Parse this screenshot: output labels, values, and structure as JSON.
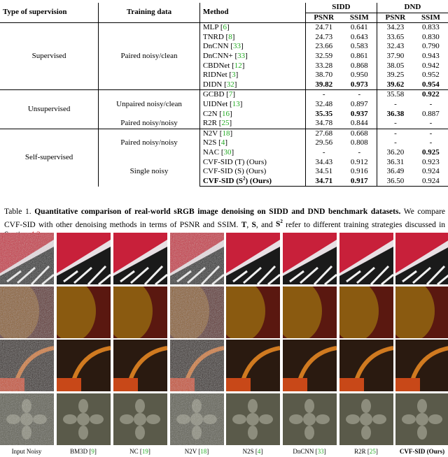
{
  "table": {
    "headers": {
      "type_of_supervision": "Type of supervision",
      "training_data": "Training data",
      "method": "Method",
      "sidd": "SIDD",
      "dnd": "DND",
      "psnr": "PSNR",
      "ssim": "SSIM"
    },
    "groups": {
      "supervised": "Supervised",
      "unsupervised": "Unsupervised",
      "self_supervised": "Self-supervised"
    },
    "training": {
      "paired_noisy_clean": "Paired noisy/clean",
      "unpaired_noisy_clean": "Unpaired noisy/clean",
      "paired_noisy_noisy_1": "Paired noisy/noisy",
      "paired_noisy_noisy_2": "Paired noisy/noisy",
      "single_noisy": "Single noisy"
    },
    "rows": [
      {
        "method": "MLP",
        "ref": "6",
        "sp": "24.71",
        "ss": "0.641",
        "dp": "34.23",
        "ds": "0.833"
      },
      {
        "method": "TNRD",
        "ref": "8",
        "sp": "24.73",
        "ss": "0.643",
        "dp": "33.65",
        "ds": "0.830"
      },
      {
        "method": "DnCNN",
        "ref": "33",
        "sp": "23.66",
        "ss": "0.583",
        "dp": "32.43",
        "ds": "0.790"
      },
      {
        "method": "DnCNN+",
        "ref": "33",
        "sp": "32.59",
        "ss": "0.861",
        "dp": "37.90",
        "ds": "0.943"
      },
      {
        "method": "CBDNet",
        "ref": "12",
        "sp": "33.28",
        "ss": "0.868",
        "dp": "38.05",
        "ds": "0.942"
      },
      {
        "method": "RIDNet",
        "ref": "3",
        "sp": "38.70",
        "ss": "0.950",
        "dp": "39.25",
        "ds": "0.952"
      },
      {
        "method": "DIDN",
        "ref": "32",
        "sp": "39.82",
        "ss": "0.973",
        "dp": "39.62",
        "ds": "0.954"
      },
      {
        "method": "GCBD",
        "ref": "7",
        "sp": "-",
        "ss": "-",
        "dp": "35.58",
        "ds": "0.922"
      },
      {
        "method": "UIDNet",
        "ref": "13",
        "sp": "32.48",
        "ss": "0.897",
        "dp": "-",
        "ds": "-"
      },
      {
        "method": "C2N",
        "ref": "16",
        "sp": "35.35",
        "ss": "0.937",
        "dp": "36.38",
        "ds": "0.887"
      },
      {
        "method": "R2R",
        "ref": "25",
        "sp": "34.78",
        "ss": "0.844",
        "dp": "-",
        "ds": "-"
      },
      {
        "method": "N2V",
        "ref": "18",
        "sp": "27.68",
        "ss": "0.668",
        "dp": "-",
        "ds": "-"
      },
      {
        "method": "N2S",
        "ref": "4",
        "sp": "29.56",
        "ss": "0.808",
        "dp": "-",
        "ds": "-"
      },
      {
        "method": "NAC",
        "ref": "30",
        "sp": "-",
        "ss": "-",
        "dp": "36.20",
        "ds": "0.925"
      },
      {
        "method": "CVF-SID (T) (Ours)",
        "ref": "",
        "sp": "34.43",
        "ss": "0.912",
        "dp": "36.31",
        "ds": "0.923"
      },
      {
        "method": "CVF-SID (S) (Ours)",
        "ref": "",
        "sp": "34.51",
        "ss": "0.916",
        "dp": "36.49",
        "ds": "0.924"
      },
      {
        "method": "CVF-SID (S",
        "sup": "2",
        "method_tail": ") (Ours)",
        "ref": "",
        "sp": "34.71",
        "ss": "0.917",
        "dp": "36.50",
        "ds": "0.924"
      }
    ]
  },
  "caption": {
    "label": "Table 1.",
    "bold": "Quantitative comparison of real-world sRGB image denoising on SIDD and DND benchmark datasets.",
    "text1": "We compare CVF-SID with other denoising methods in terms of PSNR and SSIM.",
    "t": "T",
    "s": "S",
    "and": "and",
    "s2": "S",
    "s2_sup": "2",
    "text2": "refer to different training strategies discussed in Section",
    "section": "4.3",
    "period": "."
  },
  "image_labels": [
    {
      "text": "Input Noisy",
      "ref": ""
    },
    {
      "text": "BM3D",
      "ref": "9"
    },
    {
      "text": "NC",
      "ref": "19"
    },
    {
      "text": "N2V",
      "ref": "18"
    },
    {
      "text": "N2S",
      "ref": "4"
    },
    {
      "text": "DnCNN",
      "ref": "33"
    },
    {
      "text": "R2R",
      "ref": "25"
    },
    {
      "text": "CVF-SID (Ours)",
      "ref": ""
    }
  ],
  "colors": {
    "ref_green": "#22aa22",
    "section_red": "#cc2222",
    "patch_row1": "#c8203a",
    "patch_row2": "#8a5a10",
    "patch_row3": "#2a1a10",
    "patch_row4": "#5a5a4a"
  }
}
